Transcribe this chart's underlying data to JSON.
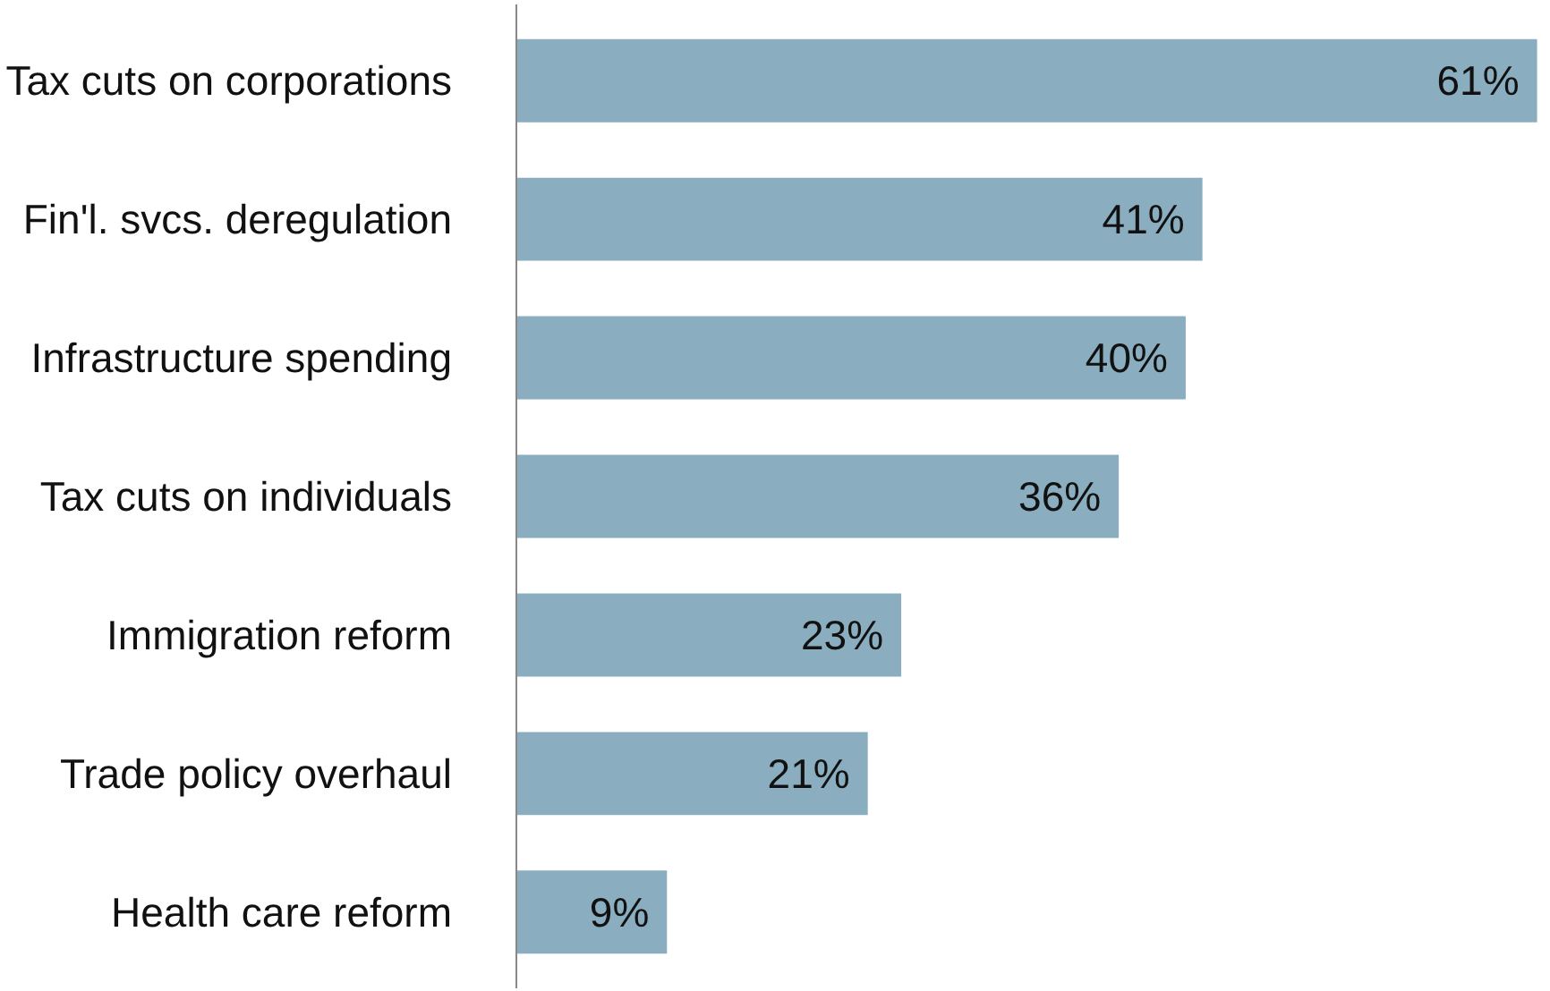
{
  "chart_data": {
    "type": "bar",
    "orientation": "horizontal",
    "categories": [
      "Tax cuts on corporations",
      "Fin'l. svcs. deregulation",
      "Infrastructure spending",
      "Tax cuts on individuals",
      "Immigration reform",
      "Trade policy overhaul",
      "Health care reform"
    ],
    "values": [
      61,
      41,
      40,
      36,
      23,
      21,
      9
    ],
    "value_labels": [
      "61%",
      "41%",
      "40%",
      "36%",
      "23%",
      "21%",
      "9%"
    ],
    "color": "#8aaebf",
    "grid": false,
    "tick_labels": "y"
  }
}
